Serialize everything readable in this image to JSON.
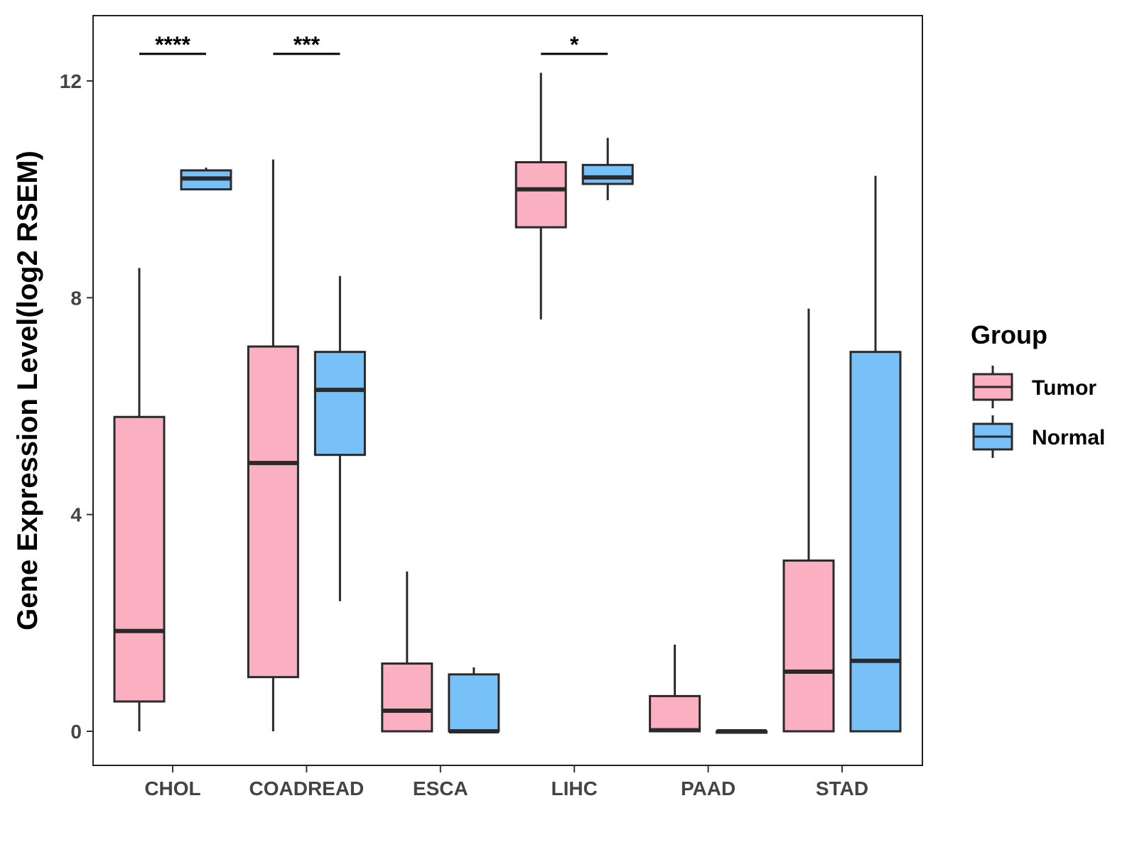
{
  "chart_data": {
    "type": "boxplot",
    "title": "",
    "xlabel": "",
    "ylabel": "Gene Expression Level(log2 RSEM)",
    "ylim": [
      -0.6,
      13.2
    ],
    "yticks": [
      0,
      4,
      8,
      12
    ],
    "categories": [
      "CHOL",
      "COADREAD",
      "ESCA",
      "LIHC",
      "PAAD",
      "STAD"
    ],
    "legend": {
      "title": "Group",
      "position": "right"
    },
    "colors": {
      "Tumor": "#FBB0C2",
      "Normal": "#78C1F8",
      "stroke": "#2a2a2a"
    },
    "series": [
      {
        "name": "Tumor",
        "boxes": [
          {
            "category": "CHOL",
            "min": 0.0,
            "q1": 0.55,
            "median": 1.85,
            "q3": 5.8,
            "max": 8.55
          },
          {
            "category": "COADREAD",
            "min": 0.0,
            "q1": 1.0,
            "median": 4.95,
            "q3": 7.1,
            "max": 10.55
          },
          {
            "category": "ESCA",
            "min": 0.0,
            "q1": 0.0,
            "median": 0.38,
            "q3": 1.25,
            "max": 2.95
          },
          {
            "category": "LIHC",
            "min": 7.6,
            "q1": 9.3,
            "median": 10.0,
            "q3": 10.5,
            "max": 12.15
          },
          {
            "category": "PAAD",
            "min": 0.0,
            "q1": 0.0,
            "median": 0.02,
            "q3": 0.65,
            "max": 1.6
          },
          {
            "category": "STAD",
            "min": 0.0,
            "q1": 0.0,
            "median": 1.1,
            "q3": 3.15,
            "max": 7.8
          }
        ]
      },
      {
        "name": "Normal",
        "boxes": [
          {
            "category": "CHOL",
            "min": 10.0,
            "q1": 10.0,
            "median": 10.2,
            "q3": 10.35,
            "max": 10.4
          },
          {
            "category": "COADREAD",
            "min": 2.4,
            "q1": 5.1,
            "median": 6.3,
            "q3": 7.0,
            "max": 8.4
          },
          {
            "category": "ESCA",
            "min": 0.0,
            "q1": 0.0,
            "median": 0.0,
            "q3": 1.05,
            "max": 1.18
          },
          {
            "category": "LIHC",
            "min": 9.8,
            "q1": 10.1,
            "median": 10.22,
            "q3": 10.45,
            "max": 10.95
          },
          {
            "category": "PAAD",
            "min": 0.0,
            "q1": 0.0,
            "median": 0.0,
            "q3": 0.0,
            "max": 0.0
          },
          {
            "category": "STAD",
            "min": 0.0,
            "q1": 0.0,
            "median": 1.3,
            "q3": 7.0,
            "max": 10.25
          }
        ]
      }
    ],
    "significance": [
      {
        "category": "CHOL",
        "label": "****"
      },
      {
        "category": "COADREAD",
        "label": "***"
      },
      {
        "category": "LIHC",
        "label": "*"
      }
    ],
    "significance_y": 12.5
  }
}
